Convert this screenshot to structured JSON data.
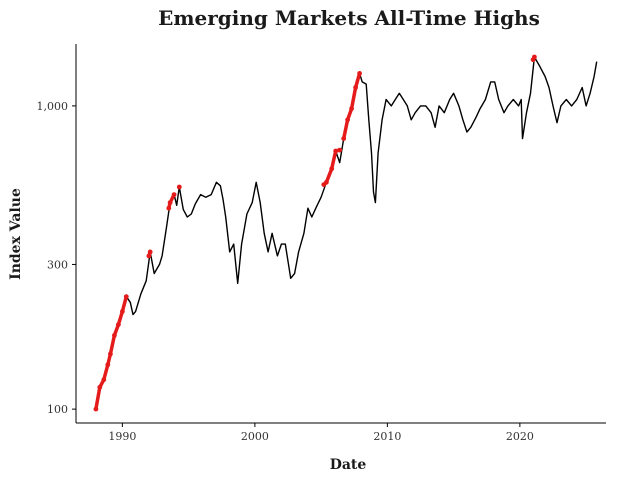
{
  "chart_data": {
    "type": "line",
    "title": "Emerging Markets All-Time Highs",
    "xlabel": "Date",
    "ylabel": "Index Value",
    "y_scale": "log",
    "xlim": [
      1986.5,
      2026.5
    ],
    "ylim": [
      90,
      1600
    ],
    "x_ticks": [
      1990,
      2000,
      2010,
      2020
    ],
    "x_tick_labels": [
      "1990",
      "2000",
      "2010",
      "2020"
    ],
    "y_ticks": [
      100,
      300,
      1000
    ],
    "y_tick_labels": [
      "100",
      "300",
      "1,000"
    ],
    "series": [
      {
        "name": "Index Value",
        "color": "#000000",
        "x": [
          1988.0,
          1988.3,
          1988.6,
          1988.9,
          1989.1,
          1989.4,
          1989.7,
          1990.0,
          1990.3,
          1990.6,
          1990.8,
          1991.0,
          1991.4,
          1991.8,
          1992.1,
          1992.4,
          1992.8,
          1993.0,
          1993.3,
          1993.6,
          1993.9,
          1994.1,
          1994.3,
          1994.6,
          1994.9,
          1995.2,
          1995.5,
          1995.9,
          1996.3,
          1996.7,
          1997.1,
          1997.4,
          1997.6,
          1997.8,
          1998.1,
          1998.4,
          1998.7,
          1999.0,
          1999.4,
          1999.8,
          2000.1,
          2000.4,
          2000.7,
          2001.0,
          2001.3,
          2001.7,
          2002.0,
          2002.3,
          2002.7,
          2003.0,
          2003.3,
          2003.7,
          2004.0,
          2004.3,
          2004.6,
          2005.0,
          2005.4,
          2005.8,
          2006.1,
          2006.4,
          2006.7,
          2007.0,
          2007.3,
          2007.6,
          2007.9,
          2008.1,
          2008.4,
          2008.6,
          2008.8,
          2008.95,
          2009.1,
          2009.3,
          2009.6,
          2009.9,
          2010.3,
          2010.6,
          2010.9,
          2011.2,
          2011.5,
          2011.8,
          2012.1,
          2012.5,
          2012.9,
          2013.3,
          2013.6,
          2013.9,
          2014.3,
          2014.7,
          2015.0,
          2015.4,
          2015.7,
          2016.0,
          2016.3,
          2016.7,
          2017.0,
          2017.4,
          2017.8,
          2018.1,
          2018.4,
          2018.8,
          2019.1,
          2019.5,
          2019.9,
          2020.1,
          2020.2,
          2020.5,
          2020.8,
          2021.1,
          2021.5,
          2021.9,
          2022.2,
          2022.5,
          2022.8,
          2023.1,
          2023.5,
          2023.9,
          2024.3,
          2024.7,
          2025.0,
          2025.3,
          2025.6,
          2025.8
        ],
        "values": [
          100,
          118,
          125,
          140,
          152,
          175,
          190,
          210,
          235,
          225,
          205,
          210,
          240,
          265,
          330,
          280,
          300,
          320,
          390,
          480,
          510,
          470,
          540,
          455,
          430,
          440,
          475,
          510,
          500,
          510,
          560,
          545,
          490,
          430,
          330,
          350,
          260,
          350,
          440,
          480,
          560,
          480,
          380,
          330,
          380,
          320,
          350,
          350,
          270,
          280,
          330,
          380,
          460,
          430,
          460,
          500,
          560,
          620,
          710,
          650,
          780,
          900,
          980,
          1150,
          1280,
          1200,
          1180,
          900,
          700,
          520,
          480,
          700,
          900,
          1050,
          1000,
          1050,
          1100,
          1050,
          1000,
          900,
          950,
          1000,
          1000,
          950,
          850,
          1000,
          950,
          1050,
          1100,
          1000,
          900,
          820,
          850,
          920,
          980,
          1050,
          1200,
          1200,
          1050,
          950,
          1000,
          1050,
          1000,
          1050,
          780,
          950,
          1100,
          1450,
          1350,
          1250,
          1150,
          1000,
          880,
          1000,
          1050,
          1000,
          1050,
          1150,
          1000,
          1100,
          1250,
          1400
        ]
      }
    ],
    "highlights": {
      "name": "All-Time Highs",
      "color": "#e51b1b",
      "segments": [
        {
          "x": [
            1988.0,
            1988.3,
            1988.6,
            1988.9,
            1989.1,
            1989.4,
            1989.7,
            1990.0,
            1990.3
          ],
          "values": [
            100,
            118,
            125,
            140,
            152,
            175,
            190,
            210,
            235
          ]
        },
        {
          "x": [
            1992.0,
            1992.1
          ],
          "values": [
            320,
            330
          ]
        },
        {
          "x": [
            1993.5,
            1993.6,
            1993.9
          ],
          "values": [
            460,
            480,
            510
          ]
        },
        {
          "x": [
            1994.3
          ],
          "values": [
            540
          ]
        },
        {
          "x": [
            2005.2,
            2005.4,
            2005.8,
            2006.1,
            2006.4
          ],
          "values": [
            550,
            560,
            620,
            710,
            715
          ]
        },
        {
          "x": [
            2006.7,
            2007.0,
            2007.3,
            2007.6,
            2007.9
          ],
          "values": [
            780,
            900,
            980,
            1150,
            1280
          ]
        },
        {
          "x": [
            2021.0,
            2021.1
          ],
          "values": [
            1420,
            1450
          ]
        }
      ]
    },
    "grid": false,
    "legend": "none"
  }
}
